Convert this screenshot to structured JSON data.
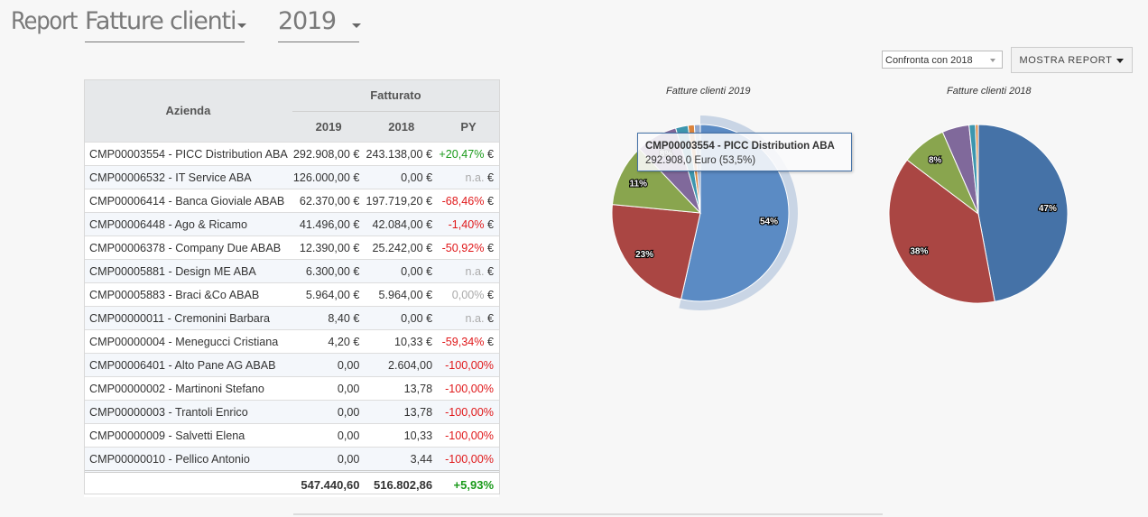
{
  "header": {
    "title_prefix": "Report",
    "report_type": "Fatture clienti",
    "year": "2019"
  },
  "toolbar": {
    "compare_select": "Confronta con 2018",
    "show_report_label": "MOSTRA REPORT"
  },
  "table": {
    "group_header": "Fatturato",
    "col_company": "Azienda",
    "col_2019": "2019",
    "col_2018": "2018",
    "col_py": "PY",
    "rows": [
      {
        "company": "CMP00003554 - PICC Distribution ABA",
        "v2019": "292.908,00 €",
        "v2018": "243.138,00 €",
        "py": "+20,47%",
        "py_class": "pos",
        "suffix": " €"
      },
      {
        "company": "CMP00006532 - IT Service ABA",
        "v2019": "126.000,00 €",
        "v2018": "0,00 €",
        "py": "n.a.",
        "py_class": "na",
        "suffix": " €"
      },
      {
        "company": "CMP00006414 - Banca Gioviale ABAB",
        "v2019": "62.370,00 €",
        "v2018": "197.719,20 €",
        "py": "-68,46%",
        "py_class": "neg",
        "suffix": " €"
      },
      {
        "company": "CMP00006448 - Ago & Ricamo",
        "v2019": "41.496,00 €",
        "v2018": "42.084,00 €",
        "py": "-1,40%",
        "py_class": "neg",
        "suffix": " €"
      },
      {
        "company": "CMP00006378 - Company Due ABAB",
        "v2019": "12.390,00 €",
        "v2018": "25.242,00 €",
        "py": "-50,92%",
        "py_class": "neg",
        "suffix": " €"
      },
      {
        "company": "CMP00005881 - Design ME ABA",
        "v2019": "6.300,00 €",
        "v2018": "0,00 €",
        "py": "n.a.",
        "py_class": "na",
        "suffix": " €"
      },
      {
        "company": "CMP00005883 - Braci &Co ABAB",
        "v2019": "5.964,00 €",
        "v2018": "5.964,00 €",
        "py": "0,00%",
        "py_class": "na",
        "suffix": " €"
      },
      {
        "company": "CMP00000011 - Cremonini Barbara",
        "v2019": "8,40 €",
        "v2018": "0,00 €",
        "py": "n.a.",
        "py_class": "na",
        "suffix": " €"
      },
      {
        "company": "CMP00000004 - Menegucci Cristiana",
        "v2019": "4,20 €",
        "v2018": "10,33 €",
        "py": "-59,34%",
        "py_class": "neg",
        "suffix": " €"
      },
      {
        "company": "CMP00006401 - Alto Pane AG ABAB",
        "v2019": "0,00",
        "v2018": "2.604,00",
        "py": "-100,00%",
        "py_class": "neg",
        "suffix": ""
      },
      {
        "company": "CMP00000002 - Martinoni Stefano",
        "v2019": "0,00",
        "v2018": "13,78",
        "py": "-100,00%",
        "py_class": "neg",
        "suffix": ""
      },
      {
        "company": "CMP00000003 - Trantoli Enrico",
        "v2019": "0,00",
        "v2018": "13,78",
        "py": "-100,00%",
        "py_class": "neg",
        "suffix": ""
      },
      {
        "company": "CMP00000009 - Salvetti Elena",
        "v2019": "0,00",
        "v2018": "10,33",
        "py": "-100,00%",
        "py_class": "neg",
        "suffix": ""
      },
      {
        "company": "CMP00000010 - Pellico Antonio",
        "v2019": "0,00",
        "v2018": "3,44",
        "py": "-100,00%",
        "py_class": "neg",
        "suffix": ""
      }
    ],
    "totals": {
      "v2019": "547.440,60",
      "v2018": "516.802,86",
      "py": "+5,93%"
    }
  },
  "tooltip": {
    "title": "CMP00003554 - PICC Distribution ABA",
    "value": "292.908,0 Euro (53,5%)"
  },
  "colors": {
    "blue": "#4572a7",
    "red": "#aa4643",
    "green": "#89a54e",
    "purple": "#80699b",
    "teal": "#3d96ae",
    "orange": "#db843d",
    "lightblue": "#92a8cd",
    "pink": "#a47d7c",
    "lime": "#b5ca92",
    "positive": "#1a9a1a",
    "negative": "#e0191b"
  },
  "chart_data": [
    {
      "type": "pie",
      "title": "Fatture clienti 2019",
      "unit": "Euro",
      "categories": [
        "CMP00003554 - PICC Distribution ABA",
        "CMP00006532 - IT Service ABA",
        "CMP00006414 - Banca Gioviale ABAB",
        "CMP00006448 - Ago & Ricamo",
        "CMP00006378 - Company Due ABAB",
        "CMP00005881 - Design ME ABA",
        "CMP00005883 - Braci &Co ABAB",
        "CMP00000011 - Cremonini Barbara",
        "CMP00000004 - Menegucci Cristiana"
      ],
      "values": [
        292908.0,
        126000.0,
        62370.0,
        41496.0,
        12390.0,
        6300.0,
        5964.0,
        8.4,
        4.2
      ],
      "data_labels": [
        "54%",
        "23%",
        "11%",
        "8%",
        "",
        "",
        "",
        "",
        ""
      ],
      "highlighted": 0
    },
    {
      "type": "pie",
      "title": "Fatture clienti 2018",
      "unit": "Euro",
      "categories": [
        "CMP00003554 - PICC Distribution ABA",
        "CMP00006414 - Banca Gioviale ABAB",
        "CMP00006448 - Ago & Ricamo",
        "CMP00006378 - Company Due ABAB",
        "CMP00005883 - Braci &Co ABAB",
        "CMP00006401 - Alto Pane AG ABAB",
        "CMP00000002 - Martinoni Stefano",
        "CMP00000003 - Trantoli Enrico",
        "CMP00000004 - Menegucci Cristiana",
        "CMP00000009 - Salvetti Elena",
        "CMP00000010 - Pellico Antonio"
      ],
      "values": [
        243138.0,
        197719.2,
        42084.0,
        25242.0,
        5964.0,
        2604.0,
        13.78,
        13.78,
        10.33,
        10.33,
        3.44
      ],
      "data_labels": [
        "47%",
        "38%",
        "8%",
        "",
        "",
        "",
        "",
        "",
        "",
        "",
        ""
      ]
    }
  ]
}
